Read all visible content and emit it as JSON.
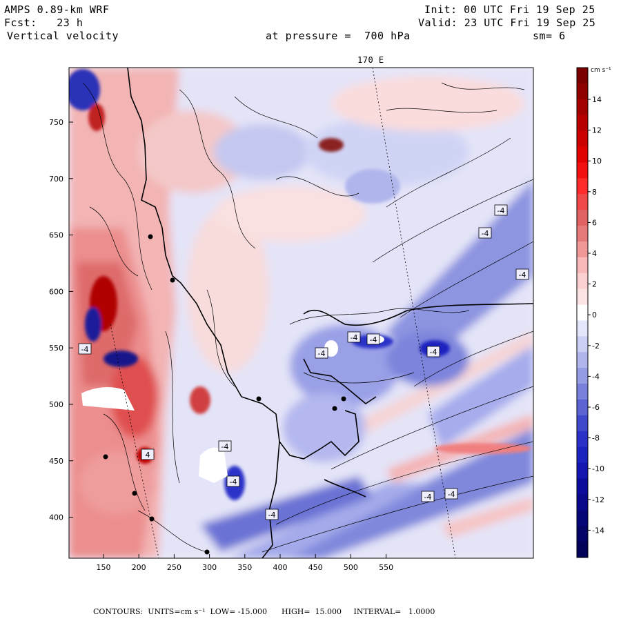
{
  "header": {
    "model": "AMPS 0.89-km WRF",
    "forecast": "Fcst:   23 h",
    "field": "Vertical velocity",
    "init": "Init: 00 UTC Fri 19 Sep 25",
    "valid": "Valid: 23 UTC Fri 19 Sep 25",
    "pressure": "at pressure =  700 hPa",
    "smoothing": "sm= 6",
    "meridian_label": "170 E"
  },
  "axes": {
    "x_ticks": [
      "150",
      "200",
      "250",
      "300",
      "350",
      "400",
      "450",
      "500",
      "550"
    ],
    "y_ticks": [
      "750",
      "700",
      "650",
      "600",
      "550",
      "500",
      "450",
      "400"
    ]
  },
  "colorbar": {
    "units": "cm s⁻¹",
    "labels": [
      "14",
      "12",
      "10",
      "8",
      "6",
      "4",
      "2",
      "0",
      "-2",
      "-4",
      "-6",
      "-8",
      "-10",
      "-12",
      "-14"
    ],
    "colors": [
      "#7a0000",
      "#8e0000",
      "#a30000",
      "#b80000",
      "#cc0000",
      "#e00000",
      "#f21010",
      "#ff2a2a",
      "#f04848",
      "#e06262",
      "#e67a7a",
      "#f09898",
      "#f8b8b8",
      "#fbd0d0",
      "#fde4e4",
      "#ffffff",
      "#e4e6fb",
      "#ccd0f4",
      "#b0b6ec",
      "#949ce4",
      "#7880dc",
      "#5c64d4",
      "#4048cc",
      "#2a30c8",
      "#1c22c0",
      "#1414b0",
      "#0c0c9c",
      "#08088a",
      "#060678",
      "#040466",
      "#020258"
    ]
  },
  "contour_labels": [
    "-4",
    "-4",
    "-4",
    "-4",
    "-4",
    "-4",
    "-4",
    "-4",
    "-4",
    "-4",
    "-4",
    "-4",
    "-4",
    "4"
  ],
  "footer": "CONTOURS:  UNITS=cm s⁻¹  LOW= -15.000      HIGH=  15.000     INTERVAL=   1.0000"
}
